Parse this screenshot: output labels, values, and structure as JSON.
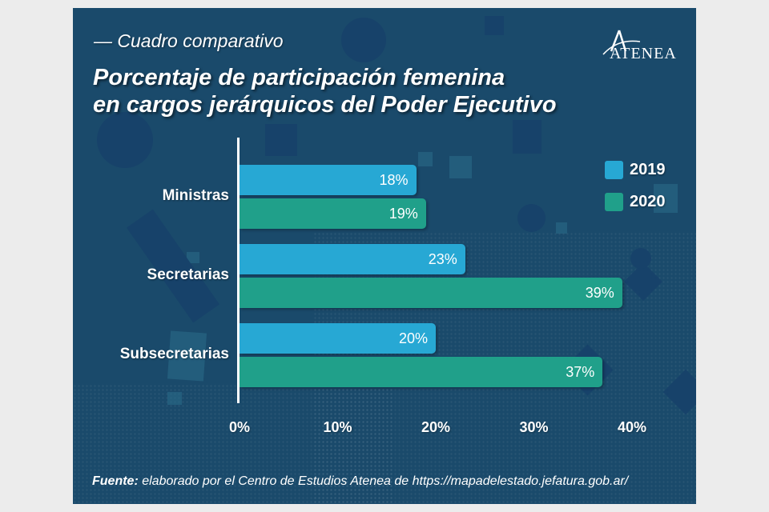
{
  "header": {
    "subtitle": "— Cuadro comparativo",
    "title_line1": "Porcentaje de participación femenina",
    "title_line2": "en cargos jerárquicos del Poder Ejecutivo",
    "logo_text": "ATENEA"
  },
  "footer": {
    "source_label": "Fuente:",
    "source_text": " elaborado por el Centro de Estudios Atenea de https://mapadelestado.jefatura.gob.ar/"
  },
  "colors": {
    "background": "#1a4a6b",
    "series_2019": "#27a8d4",
    "series_2020": "#20a08a"
  },
  "chart_data": {
    "type": "bar",
    "orientation": "horizontal",
    "title": "Porcentaje de participación femenina en cargos jerárquicos del Poder Ejecutivo",
    "subtitle": "Cuadro comparativo",
    "categories": [
      "Ministras",
      "Secretarias",
      "Subsecretarias"
    ],
    "series": [
      {
        "name": "2019",
        "color": "#27a8d4",
        "values": [
          18,
          23,
          20
        ],
        "labels": [
          "18%",
          "23%",
          "20%"
        ]
      },
      {
        "name": "2020",
        "color": "#20a08a",
        "values": [
          19,
          39,
          37
        ],
        "labels": [
          "19%",
          "39%",
          "37%"
        ]
      }
    ],
    "xlabel": "",
    "ylabel": "",
    "xlim": [
      0,
      40
    ],
    "xticks": [
      "0%",
      "10%",
      "20%",
      "30%",
      "40%"
    ],
    "grid": false,
    "legend": {
      "position": "top-right",
      "entries": [
        "2019",
        "2020"
      ]
    }
  }
}
